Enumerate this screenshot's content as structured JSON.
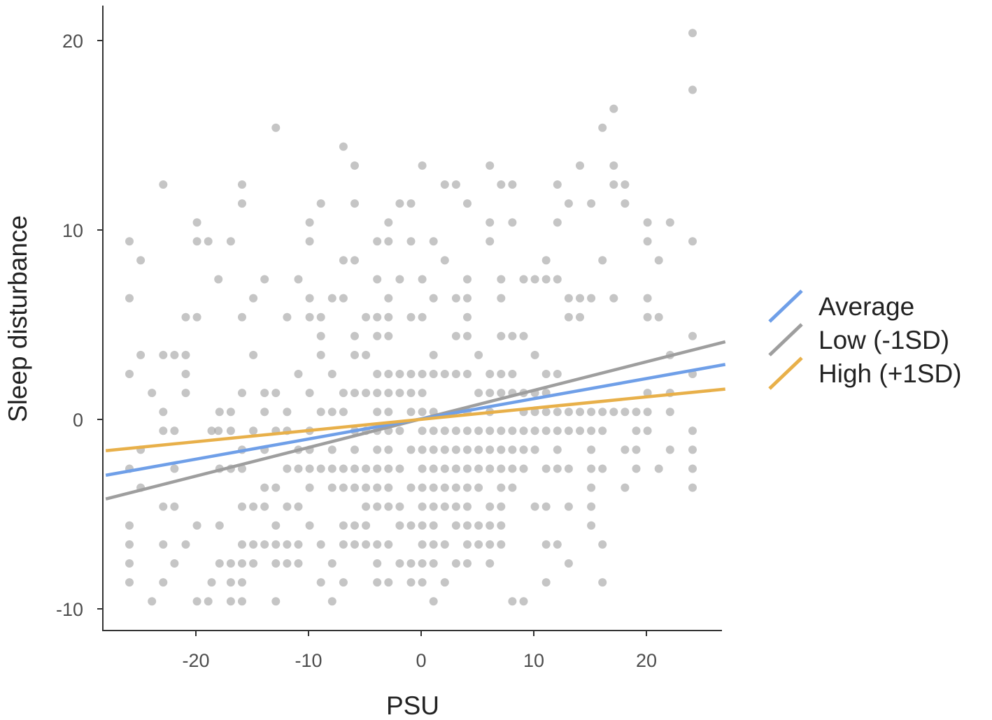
{
  "chart_data": {
    "type": "scatter",
    "title": "",
    "xlabel": "PSU",
    "ylabel": "Sleep disturbance",
    "xlim": [
      -28,
      27
    ],
    "ylim": [
      -11,
      22
    ],
    "x_ticks": [
      -20,
      -10,
      0,
      10,
      20
    ],
    "y_ticks": [
      -10,
      0,
      10,
      20
    ],
    "grid": false,
    "legend_position": "right",
    "point_color": "#9e9e9e",
    "point_opacity": 0.6,
    "series": [
      {
        "name": "Average",
        "type": "line",
        "color": "#6f9fe8",
        "x": [
          -28,
          27
        ],
        "y": [
          -2.95,
          2.9
        ]
      },
      {
        "name": "Low (-1SD)",
        "type": "line",
        "color": "#9e9e9e",
        "x": [
          -28,
          27
        ],
        "y": [
          -4.2,
          4.1
        ]
      },
      {
        "name": "High (+1SD)",
        "type": "line",
        "color": "#e8b04a",
        "x": [
          -28,
          27
        ],
        "y": [
          -1.65,
          1.6
        ]
      }
    ],
    "points": [
      [
        -25.9,
        9.4
      ],
      [
        -25.9,
        6.4
      ],
      [
        -25.9,
        2.4
      ],
      [
        -25.9,
        -2.6
      ],
      [
        -25.9,
        -5.6
      ],
      [
        -25.9,
        -6.6
      ],
      [
        -25.9,
        -7.6
      ],
      [
        -25.9,
        -8.6
      ],
      [
        -24.9,
        8.4
      ],
      [
        -24.9,
        3.4
      ],
      [
        -24.9,
        -1.6
      ],
      [
        -24.9,
        -3.6
      ],
      [
        -23.9,
        1.4
      ],
      [
        -23.9,
        -9.6
      ],
      [
        -22.9,
        12.4
      ],
      [
        -22.9,
        3.4
      ],
      [
        -22.9,
        0.4
      ],
      [
        -22.9,
        -0.6
      ],
      [
        -22.9,
        -4.6
      ],
      [
        -22.9,
        -6.6
      ],
      [
        -22.9,
        -8.6
      ],
      [
        -21.9,
        3.4
      ],
      [
        -21.9,
        -0.6
      ],
      [
        -21.9,
        -2.6
      ],
      [
        -21.9,
        -4.6
      ],
      [
        -21.9,
        -7.6
      ],
      [
        -20.9,
        5.4
      ],
      [
        -20.9,
        3.4
      ],
      [
        -20.9,
        2.4
      ],
      [
        -20.9,
        1.4
      ],
      [
        -20.9,
        -6.6
      ],
      [
        -19.9,
        10.4
      ],
      [
        -19.9,
        9.4
      ],
      [
        -19.9,
        5.4
      ],
      [
        -19.9,
        -5.6
      ],
      [
        -19.9,
        -9.6
      ],
      [
        -18.9,
        9.4
      ],
      [
        -18.9,
        -9.6
      ],
      [
        -18.6,
        -0.6
      ],
      [
        -18.6,
        -8.6
      ],
      [
        -18.0,
        7.4
      ],
      [
        -18.0,
        -0.6
      ],
      [
        -17.9,
        0.4
      ],
      [
        -17.9,
        -2.6
      ],
      [
        -17.9,
        -5.6
      ],
      [
        -17.9,
        -7.6
      ],
      [
        -16.9,
        9.4
      ],
      [
        -16.9,
        0.4
      ],
      [
        -16.9,
        -0.6
      ],
      [
        -16.9,
        -2.6
      ],
      [
        -16.9,
        -7.6
      ],
      [
        -16.9,
        -8.6
      ],
      [
        -16.9,
        -9.6
      ],
      [
        -15.9,
        12.4
      ],
      [
        -15.9,
        11.4
      ],
      [
        -15.9,
        5.4
      ],
      [
        -15.9,
        1.4
      ],
      [
        -15.9,
        -1.6
      ],
      [
        -15.9,
        -2.6
      ],
      [
        -15.9,
        -4.6
      ],
      [
        -15.9,
        -6.6
      ],
      [
        -15.9,
        -7.6
      ],
      [
        -15.9,
        -8.6
      ],
      [
        -15.9,
        -9.6
      ],
      [
        -14.9,
        6.4
      ],
      [
        -14.9,
        3.4
      ],
      [
        -14.9,
        -0.6
      ],
      [
        -14.9,
        -4.6
      ],
      [
        -14.9,
        -6.6
      ],
      [
        -14.9,
        -7.6
      ],
      [
        -13.9,
        7.4
      ],
      [
        -13.9,
        1.4
      ],
      [
        -13.9,
        0.4
      ],
      [
        -13.9,
        -1.6
      ],
      [
        -13.9,
        -3.6
      ],
      [
        -13.9,
        -4.6
      ],
      [
        -13.9,
        -6.6
      ],
      [
        -12.9,
        15.4
      ],
      [
        -12.9,
        1.4
      ],
      [
        -12.9,
        -0.6
      ],
      [
        -12.9,
        -3.6
      ],
      [
        -12.9,
        -5.6
      ],
      [
        -12.9,
        -6.6
      ],
      [
        -12.9,
        -7.6
      ],
      [
        -12.9,
        -9.6
      ],
      [
        -11.9,
        5.4
      ],
      [
        -11.9,
        0.4
      ],
      [
        -11.9,
        -0.6
      ],
      [
        -11.9,
        -2.6
      ],
      [
        -11.9,
        -4.6
      ],
      [
        -11.9,
        -6.6
      ],
      [
        -11.9,
        -7.6
      ],
      [
        -10.9,
        7.4
      ],
      [
        -10.9,
        2.4
      ],
      [
        -10.9,
        -1.6
      ],
      [
        -10.9,
        -2.6
      ],
      [
        -10.9,
        -4.6
      ],
      [
        -10.9,
        -6.6
      ],
      [
        -10.9,
        -7.6
      ],
      [
        -9.9,
        10.4
      ],
      [
        -9.9,
        9.4
      ],
      [
        -9.9,
        6.4
      ],
      [
        -9.9,
        5.4
      ],
      [
        -9.9,
        1.4
      ],
      [
        -9.9,
        -0.6
      ],
      [
        -9.9,
        -1.6
      ],
      [
        -9.9,
        -2.6
      ],
      [
        -9.9,
        -3.6
      ],
      [
        -9.9,
        -5.6
      ],
      [
        -8.9,
        11.4
      ],
      [
        -8.9,
        5.4
      ],
      [
        -8.9,
        4.4
      ],
      [
        -8.9,
        3.4
      ],
      [
        -8.9,
        0.4
      ],
      [
        -8.9,
        -2.6
      ],
      [
        -8.9,
        -6.6
      ],
      [
        -8.9,
        -8.6
      ],
      [
        -7.9,
        6.4
      ],
      [
        -7.9,
        2.4
      ],
      [
        -7.9,
        0.4
      ],
      [
        -7.9,
        -1.6
      ],
      [
        -7.9,
        -2.6
      ],
      [
        -7.9,
        -3.6
      ],
      [
        -7.9,
        -7.6
      ],
      [
        -7.9,
        -9.6
      ],
      [
        -6.9,
        14.4
      ],
      [
        -6.9,
        8.4
      ],
      [
        -6.9,
        6.4
      ],
      [
        -6.9,
        1.4
      ],
      [
        -6.9,
        0.4
      ],
      [
        -6.9,
        -2.6
      ],
      [
        -6.9,
        -3.6
      ],
      [
        -6.9,
        -5.6
      ],
      [
        -6.9,
        -6.6
      ],
      [
        -6.9,
        -8.6
      ],
      [
        -5.9,
        13.4
      ],
      [
        -5.9,
        11.4
      ],
      [
        -5.9,
        8.4
      ],
      [
        -5.9,
        4.4
      ],
      [
        -5.9,
        3.4
      ],
      [
        -5.9,
        1.4
      ],
      [
        -5.9,
        -0.6
      ],
      [
        -5.9,
        -1.6
      ],
      [
        -5.9,
        -2.6
      ],
      [
        -5.9,
        -3.6
      ],
      [
        -5.9,
        -5.6
      ],
      [
        -5.9,
        -6.6
      ],
      [
        -4.9,
        5.4
      ],
      [
        -4.9,
        3.4
      ],
      [
        -4.9,
        1.4
      ],
      [
        -4.9,
        -0.6
      ],
      [
        -4.9,
        -2.6
      ],
      [
        -4.9,
        -3.6
      ],
      [
        -4.9,
        -4.6
      ],
      [
        -4.9,
        -5.6
      ],
      [
        -4.9,
        -6.6
      ],
      [
        -3.9,
        9.4
      ],
      [
        -3.9,
        7.4
      ],
      [
        -3.9,
        5.4
      ],
      [
        -3.9,
        4.4
      ],
      [
        -3.9,
        2.4
      ],
      [
        -3.9,
        1.4
      ],
      [
        -3.9,
        0.4
      ],
      [
        -3.9,
        -0.6
      ],
      [
        -3.9,
        -1.6
      ],
      [
        -3.9,
        -2.6
      ],
      [
        -3.9,
        -3.6
      ],
      [
        -3.9,
        -4.6
      ],
      [
        -3.9,
        -6.6
      ],
      [
        -3.9,
        -7.6
      ],
      [
        -3.9,
        -8.6
      ],
      [
        -2.9,
        10.4
      ],
      [
        -2.9,
        9.4
      ],
      [
        -2.9,
        6.4
      ],
      [
        -2.9,
        5.4
      ],
      [
        -2.9,
        4.4
      ],
      [
        -2.9,
        2.4
      ],
      [
        -2.9,
        1.4
      ],
      [
        -2.9,
        0.4
      ],
      [
        -2.9,
        -0.6
      ],
      [
        -2.9,
        -1.6
      ],
      [
        -2.9,
        -2.6
      ],
      [
        -2.9,
        -3.6
      ],
      [
        -2.9,
        -4.6
      ],
      [
        -2.9,
        -6.6
      ],
      [
        -2.9,
        -8.6
      ],
      [
        -1.9,
        11.4
      ],
      [
        -1.9,
        7.4
      ],
      [
        -1.9,
        2.4
      ],
      [
        -1.9,
        1.4
      ],
      [
        -1.9,
        -0.6
      ],
      [
        -1.9,
        -2.6
      ],
      [
        -1.9,
        -4.6
      ],
      [
        -1.9,
        -5.6
      ],
      [
        -1.9,
        -7.6
      ],
      [
        -0.9,
        11.4
      ],
      [
        -0.9,
        9.4
      ],
      [
        -0.9,
        5.4
      ],
      [
        -0.9,
        2.4
      ],
      [
        -0.9,
        1.4
      ],
      [
        -0.9,
        0.4
      ],
      [
        -0.9,
        -1.6
      ],
      [
        -0.9,
        -3.6
      ],
      [
        -0.9,
        -5.6
      ],
      [
        -0.9,
        -7.6
      ],
      [
        -0.9,
        -8.6
      ],
      [
        0.1,
        13.4
      ],
      [
        0.1,
        7.4
      ],
      [
        0.1,
        5.4
      ],
      [
        0.1,
        2.4
      ],
      [
        0.1,
        1.4
      ],
      [
        0.1,
        0.4
      ],
      [
        0.1,
        -0.6
      ],
      [
        0.1,
        -1.6
      ],
      [
        0.1,
        -2.6
      ],
      [
        0.1,
        -3.6
      ],
      [
        0.1,
        -4.6
      ],
      [
        0.1,
        -5.6
      ],
      [
        0.1,
        -6.6
      ],
      [
        0.1,
        -7.6
      ],
      [
        0.1,
        -8.6
      ],
      [
        1.1,
        9.4
      ],
      [
        1.1,
        6.4
      ],
      [
        1.1,
        3.4
      ],
      [
        1.1,
        2.4
      ],
      [
        1.1,
        0.4
      ],
      [
        1.1,
        -0.6
      ],
      [
        1.1,
        -1.6
      ],
      [
        1.1,
        -2.6
      ],
      [
        1.1,
        -3.6
      ],
      [
        1.1,
        -4.6
      ],
      [
        1.1,
        -5.6
      ],
      [
        1.1,
        -6.6
      ],
      [
        1.1,
        -7.6
      ],
      [
        1.1,
        -9.6
      ],
      [
        2.1,
        12.4
      ],
      [
        2.1,
        8.4
      ],
      [
        2.1,
        2.4
      ],
      [
        2.1,
        -0.6
      ],
      [
        2.1,
        -1.6
      ],
      [
        2.1,
        -2.6
      ],
      [
        2.1,
        -3.6
      ],
      [
        2.1,
        -4.6
      ],
      [
        2.1,
        -6.6
      ],
      [
        2.1,
        -8.6
      ],
      [
        3.1,
        12.4
      ],
      [
        3.1,
        6.4
      ],
      [
        3.1,
        4.4
      ],
      [
        3.1,
        2.4
      ],
      [
        3.1,
        -0.6
      ],
      [
        3.1,
        -1.6
      ],
      [
        3.1,
        -2.6
      ],
      [
        3.1,
        -3.6
      ],
      [
        3.1,
        -4.6
      ],
      [
        3.1,
        -5.6
      ],
      [
        3.1,
        -7.6
      ],
      [
        4.1,
        11.4
      ],
      [
        4.1,
        7.4
      ],
      [
        4.1,
        6.4
      ],
      [
        4.1,
        5.4
      ],
      [
        4.1,
        4.4
      ],
      [
        4.1,
        2.4
      ],
      [
        4.1,
        0.4
      ],
      [
        4.1,
        -0.6
      ],
      [
        4.1,
        -1.6
      ],
      [
        4.1,
        -2.6
      ],
      [
        4.1,
        -3.6
      ],
      [
        4.1,
        -4.6
      ],
      [
        4.1,
        -5.6
      ],
      [
        4.1,
        -6.6
      ],
      [
        4.1,
        -7.6
      ],
      [
        5.1,
        3.4
      ],
      [
        5.1,
        1.4
      ],
      [
        5.1,
        -0.6
      ],
      [
        5.1,
        -1.6
      ],
      [
        5.1,
        -2.6
      ],
      [
        5.1,
        -3.6
      ],
      [
        5.1,
        -5.6
      ],
      [
        5.1,
        -6.6
      ],
      [
        6.1,
        13.4
      ],
      [
        6.1,
        10.4
      ],
      [
        6.1,
        9.4
      ],
      [
        6.1,
        2.4
      ],
      [
        6.1,
        1.4
      ],
      [
        6.1,
        0.4
      ],
      [
        6.1,
        -0.6
      ],
      [
        6.1,
        -1.6
      ],
      [
        6.1,
        -2.6
      ],
      [
        6.1,
        -4.6
      ],
      [
        6.1,
        -5.6
      ],
      [
        6.1,
        -6.6
      ],
      [
        6.1,
        -7.6
      ],
      [
        7.1,
        12.4
      ],
      [
        7.1,
        7.4
      ],
      [
        7.1,
        6.4
      ],
      [
        7.1,
        4.4
      ],
      [
        7.1,
        2.4
      ],
      [
        7.1,
        1.4
      ],
      [
        7.1,
        -0.6
      ],
      [
        7.1,
        -1.6
      ],
      [
        7.1,
        -2.6
      ],
      [
        7.1,
        -3.6
      ],
      [
        7.1,
        -4.6
      ],
      [
        7.1,
        -5.6
      ],
      [
        7.1,
        -6.6
      ],
      [
        8.1,
        12.4
      ],
      [
        8.1,
        10.4
      ],
      [
        8.1,
        4.4
      ],
      [
        8.1,
        2.4
      ],
      [
        8.1,
        1.4
      ],
      [
        8.1,
        -0.6
      ],
      [
        8.1,
        -1.6
      ],
      [
        8.1,
        -2.6
      ],
      [
        8.1,
        -3.6
      ],
      [
        8.1,
        -9.6
      ],
      [
        9.1,
        7.4
      ],
      [
        9.1,
        4.4
      ],
      [
        9.1,
        1.4
      ],
      [
        9.1,
        0.4
      ],
      [
        9.1,
        -0.6
      ],
      [
        9.1,
        -1.6
      ],
      [
        9.1,
        -2.6
      ],
      [
        9.1,
        -9.6
      ],
      [
        10.1,
        7.4
      ],
      [
        10.1,
        3.4
      ],
      [
        10.1,
        1.4
      ],
      [
        10.1,
        0.4
      ],
      [
        10.1,
        -0.6
      ],
      [
        10.1,
        -1.6
      ],
      [
        10.1,
        -4.6
      ],
      [
        11.1,
        8.4
      ],
      [
        11.1,
        7.4
      ],
      [
        11.1,
        2.4
      ],
      [
        11.1,
        1.4
      ],
      [
        11.1,
        0.4
      ],
      [
        11.1,
        -0.6
      ],
      [
        11.1,
        -2.6
      ],
      [
        11.1,
        -4.6
      ],
      [
        11.1,
        -6.6
      ],
      [
        11.1,
        -8.6
      ],
      [
        12.1,
        12.4
      ],
      [
        12.1,
        10.4
      ],
      [
        12.1,
        7.4
      ],
      [
        12.1,
        2.4
      ],
      [
        12.1,
        0.4
      ],
      [
        12.1,
        -0.6
      ],
      [
        12.1,
        -1.6
      ],
      [
        12.1,
        -2.6
      ],
      [
        12.1,
        -6.6
      ],
      [
        13.1,
        11.4
      ],
      [
        13.1,
        6.4
      ],
      [
        13.1,
        5.4
      ],
      [
        13.1,
        0.4
      ],
      [
        13.1,
        -0.6
      ],
      [
        13.1,
        -2.6
      ],
      [
        13.1,
        -4.6
      ],
      [
        13.1,
        -7.6
      ],
      [
        14.1,
        13.4
      ],
      [
        14.1,
        6.4
      ],
      [
        14.1,
        5.4
      ],
      [
        14.1,
        0.4
      ],
      [
        14.1,
        -0.6
      ],
      [
        15.1,
        11.4
      ],
      [
        15.1,
        6.4
      ],
      [
        15.1,
        0.4
      ],
      [
        15.1,
        -0.6
      ],
      [
        15.1,
        -1.6
      ],
      [
        15.1,
        -2.6
      ],
      [
        15.1,
        -3.6
      ],
      [
        15.1,
        -4.6
      ],
      [
        15.1,
        -5.6
      ],
      [
        16.1,
        15.4
      ],
      [
        16.1,
        8.4
      ],
      [
        16.1,
        0.4
      ],
      [
        16.1,
        -0.6
      ],
      [
        16.1,
        -2.6
      ],
      [
        16.1,
        -6.6
      ],
      [
        16.1,
        -8.6
      ],
      [
        17.1,
        16.4
      ],
      [
        17.1,
        13.4
      ],
      [
        17.1,
        12.4
      ],
      [
        17.1,
        6.4
      ],
      [
        17.1,
        0.4
      ],
      [
        18.1,
        12.4
      ],
      [
        18.1,
        11.4
      ],
      [
        18.1,
        0.4
      ],
      [
        18.1,
        -1.6
      ],
      [
        18.1,
        -3.6
      ],
      [
        19.1,
        0.4
      ],
      [
        19.1,
        -0.6
      ],
      [
        19.1,
        -1.6
      ],
      [
        19.1,
        -2.6
      ],
      [
        20.1,
        10.4
      ],
      [
        20.1,
        9.4
      ],
      [
        20.1,
        6.4
      ],
      [
        20.1,
        5.4
      ],
      [
        20.1,
        1.4
      ],
      [
        20.1,
        0.4
      ],
      [
        20.1,
        -0.6
      ],
      [
        21.1,
        8.4
      ],
      [
        21.1,
        5.4
      ],
      [
        21.1,
        -2.6
      ],
      [
        22.1,
        10.4
      ],
      [
        22.1,
        3.4
      ],
      [
        22.1,
        1.4
      ],
      [
        22.1,
        0.4
      ],
      [
        22.1,
        -1.6
      ],
      [
        24.1,
        20.4
      ],
      [
        24.1,
        17.4
      ],
      [
        24.1,
        9.4
      ],
      [
        24.1,
        4.4
      ],
      [
        24.1,
        2.4
      ],
      [
        24.1,
        -0.6
      ],
      [
        24.1,
        -1.6
      ],
      [
        24.1,
        -2.6
      ],
      [
        24.1,
        -3.6
      ]
    ]
  }
}
